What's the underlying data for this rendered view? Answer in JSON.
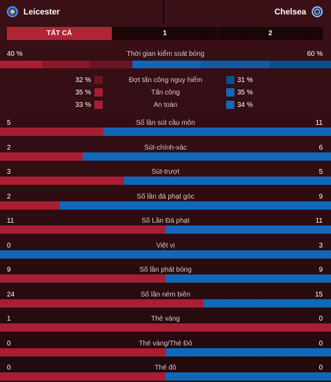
{
  "header": {
    "home_team": "Leicester",
    "away_team": "Chelsea"
  },
  "tabs": [
    {
      "label": "TẤT CẢ",
      "active": true
    },
    {
      "label": "1",
      "active": false
    },
    {
      "label": "2",
      "active": false
    }
  ],
  "possession": {
    "label": "Thời gian kiểm soát bóng",
    "home": "40 %",
    "away": "60 %",
    "home_value": 40,
    "away_value": 60
  },
  "possession_breakdown": [
    {
      "label": "Đợt tấn công nguy hiểm",
      "home": "32 %",
      "away": "31 %"
    },
    {
      "label": "Tấn công",
      "home": "35 %",
      "away": "35 %"
    },
    {
      "label": "An toàn",
      "home": "33 %",
      "away": "34 %"
    }
  ],
  "stats": [
    {
      "label": "Số lần sút cầu môn",
      "home": "5",
      "away": "11"
    },
    {
      "label": "Sút-chính-xác",
      "home": "2",
      "away": "6"
    },
    {
      "label": "Sút-trượt",
      "home": "3",
      "away": "5"
    },
    {
      "label": "Số lần đá phạt góc",
      "home": "2",
      "away": "9"
    },
    {
      "label": "Số Lần Đá phạt",
      "home": "11",
      "away": "11"
    },
    {
      "label": "Việt vị",
      "home": "0",
      "away": "3"
    },
    {
      "label": "Số lần phát bóng",
      "home": "9",
      "away": "9"
    },
    {
      "label": "Số lần ném biên",
      "home": "24",
      "away": "15"
    },
    {
      "label": "Thẻ vàng",
      "home": "1",
      "away": "0"
    },
    {
      "label": "Thẻ vàng/Thẻ Đỏ",
      "home": "0",
      "away": "0"
    },
    {
      "label": "Thẻ đỏ",
      "home": "0",
      "away": "0"
    }
  ],
  "colors": {
    "home": "#a81e32",
    "away": "#1168b8",
    "home_dark": "#6a1622",
    "away_dark": "#0b4f88"
  }
}
